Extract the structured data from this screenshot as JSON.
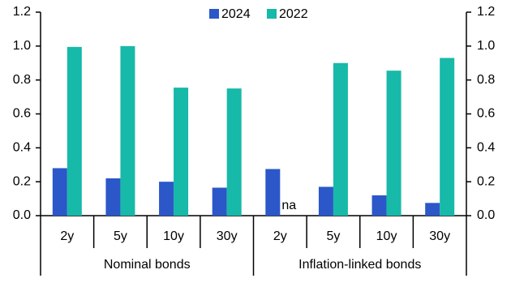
{
  "chart_data": {
    "type": "bar",
    "categories": [
      "2y",
      "5y",
      "10y",
      "30y",
      "2y",
      "5y",
      "10y",
      "30y"
    ],
    "groups": [
      "Nominal bonds",
      "Inflation-linked bonds"
    ],
    "series": [
      {
        "name": "2024",
        "color": "#2b57c8",
        "values": [
          0.28,
          0.22,
          0.2,
          0.165,
          0.275,
          0.17,
          0.12,
          0.075
        ]
      },
      {
        "name": "2022",
        "color": "#17b9a9",
        "values": [
          0.995,
          1.0,
          0.755,
          0.75,
          null,
          0.9,
          0.855,
          0.93
        ],
        "value_labels": [
          null,
          null,
          null,
          null,
          "na",
          null,
          null,
          null
        ]
      }
    ],
    "ylim": [
      0,
      1.2
    ],
    "yticks": [
      {
        "value": 0,
        "label": "0.0"
      },
      0.2,
      0.4,
      0.6,
      0.8,
      {
        "value": 1,
        "label": "1.0"
      },
      1.2
    ],
    "y2lim": [
      0,
      1.2
    ],
    "y2ticks": [
      {
        "value": 0,
        "label": "0.0"
      },
      0.2,
      0.4,
      0.6,
      0.8,
      {
        "value": 1,
        "label": "1.0"
      },
      1.2
    ],
    "grid": false,
    "legend": "top"
  }
}
